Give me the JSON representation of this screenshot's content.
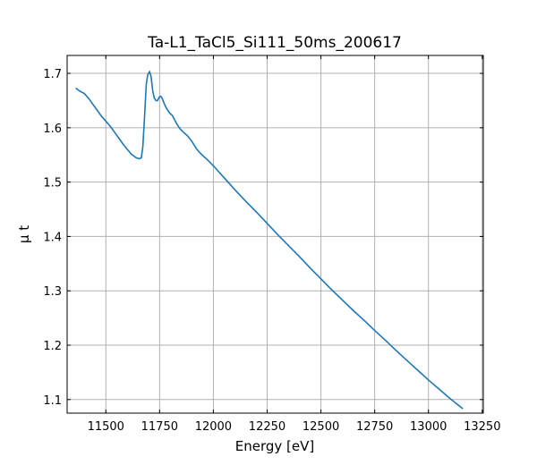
{
  "chart_data": {
    "type": "line",
    "title": "Ta-L1_TaCl5_Si111_50ms_200617",
    "xlabel": "Energy [eV]",
    "ylabel": "μ t",
    "xlim": [
      11320,
      13255
    ],
    "ylim": [
      1.075,
      1.733
    ],
    "xticks": [
      11500,
      11750,
      12000,
      12250,
      12500,
      12750,
      13000,
      13250
    ],
    "yticks": [
      1.1,
      1.2,
      1.3,
      1.4,
      1.5,
      1.6,
      1.7
    ],
    "xtick_labels": [
      "11500",
      "11750",
      "12000",
      "12250",
      "12500",
      "12750",
      "13000",
      "13250"
    ],
    "ytick_labels": [
      "1.1",
      "1.2",
      "1.3",
      "1.4",
      "1.5",
      "1.6",
      "1.7"
    ],
    "grid": true,
    "colors": {
      "line": "#1f77b4",
      "grid": "#b0b0b0",
      "axis": "#000000"
    },
    "series": [
      {
        "x": [
          11360,
          11380,
          11400,
          11420,
          11440,
          11460,
          11480,
          11500,
          11520,
          11540,
          11560,
          11580,
          11600,
          11620,
          11640,
          11655,
          11665,
          11672,
          11680,
          11688,
          11695,
          11703,
          11710,
          11718,
          11725,
          11733,
          11740,
          11748,
          11755,
          11762,
          11770,
          11780,
          11795,
          11810,
          11830,
          11845,
          11860,
          11880,
          11900,
          11920,
          11935,
          11950,
          11975,
          12000,
          12050,
          12100,
          12150,
          12200,
          12250,
          12300,
          12350,
          12400,
          12450,
          12500,
          12550,
          12600,
          12650,
          12700,
          12750,
          12800,
          12850,
          12900,
          12950,
          13000,
          13050,
          13100,
          13160
        ],
        "y": [
          1.673,
          1.667,
          1.663,
          1.654,
          1.643,
          1.632,
          1.621,
          1.612,
          1.603,
          1.592,
          1.581,
          1.57,
          1.56,
          1.551,
          1.545,
          1.543,
          1.545,
          1.565,
          1.62,
          1.68,
          1.698,
          1.703,
          1.695,
          1.668,
          1.655,
          1.65,
          1.65,
          1.656,
          1.658,
          1.654,
          1.646,
          1.637,
          1.628,
          1.622,
          1.607,
          1.598,
          1.592,
          1.585,
          1.575,
          1.562,
          1.555,
          1.549,
          1.54,
          1.53,
          1.508,
          1.486,
          1.465,
          1.445,
          1.424,
          1.403,
          1.383,
          1.363,
          1.342,
          1.322,
          1.302,
          1.283,
          1.264,
          1.246,
          1.227,
          1.209,
          1.19,
          1.172,
          1.154,
          1.136,
          1.119,
          1.102,
          1.083
        ]
      }
    ]
  }
}
